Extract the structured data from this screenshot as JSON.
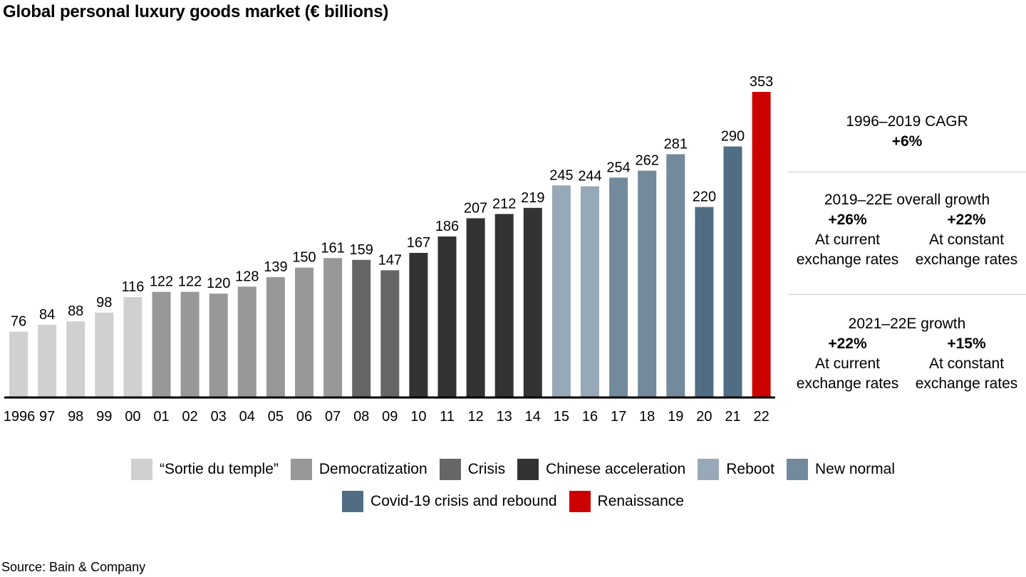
{
  "chart_data": {
    "type": "bar",
    "title": "Global personal luxury goods market (€ billions)",
    "xlabel": "",
    "ylabel": "€ billions",
    "ylim": [
      0,
      353
    ],
    "categories": [
      "1996",
      "97",
      "98",
      "99",
      "00",
      "01",
      "02",
      "03",
      "04",
      "05",
      "06",
      "07",
      "08",
      "09",
      "10",
      "11",
      "12",
      "13",
      "14",
      "15",
      "16",
      "17",
      "18",
      "19",
      "20",
      "21",
      "22"
    ],
    "values": [
      76,
      84,
      88,
      98,
      116,
      122,
      122,
      120,
      128,
      139,
      150,
      161,
      159,
      147,
      167,
      186,
      207,
      212,
      219,
      245,
      244,
      254,
      262,
      281,
      220,
      290,
      353
    ],
    "phase_index": [
      0,
      0,
      0,
      0,
      0,
      1,
      1,
      1,
      1,
      1,
      1,
      1,
      2,
      2,
      3,
      3,
      3,
      3,
      3,
      4,
      4,
      5,
      5,
      5,
      6,
      6,
      7
    ],
    "phases": [
      {
        "name": "“Sortie du temple”",
        "color": "#d0d0d0"
      },
      {
        "name": "Democratization",
        "color": "#989898"
      },
      {
        "name": "Crisis",
        "color": "#666666"
      },
      {
        "name": "Chinese acceleration",
        "color": "#333333"
      },
      {
        "name": "Reboot",
        "color": "#97a9b8"
      },
      {
        "name": "New normal",
        "color": "#738a9c"
      },
      {
        "name": "Covid-19 crisis and rebound",
        "color": "#506d84"
      },
      {
        "name": "Renaissance",
        "color": "#cc0000"
      }
    ],
    "grid": false,
    "legend_position": "bottom"
  },
  "panel": {
    "cagr": {
      "title": "1996–2019 CAGR",
      "value": "+6%"
    },
    "overall": {
      "title": "2019–22E overall growth",
      "left": {
        "value": "+26%",
        "line1": "At current",
        "line2": "exchange rates"
      },
      "right": {
        "value": "+22%",
        "line1": "At constant",
        "line2": "exchange rates"
      }
    },
    "recent": {
      "title": "2021–22E growth",
      "left": {
        "value": "+22%",
        "line1": "At current",
        "line2": "exchange rates"
      },
      "right": {
        "value": "+15%",
        "line1": "At constant",
        "line2": "exchange rates"
      }
    }
  },
  "source": "Source: Bain & Company"
}
